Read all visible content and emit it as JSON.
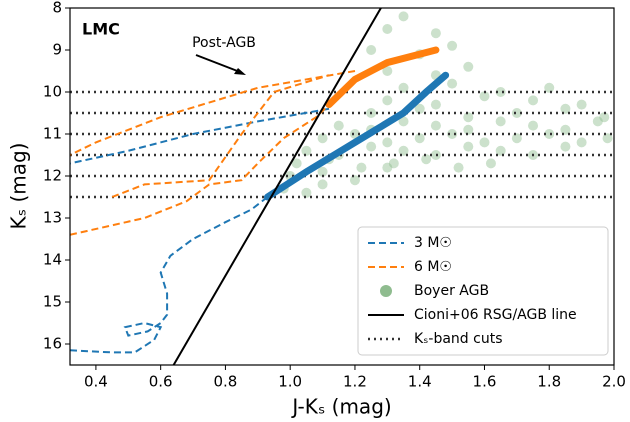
{
  "chart_data": {
    "type": "line",
    "label": "LMC",
    "annotation": "Post-AGB",
    "xlabel": "J-Kₛ (mag)",
    "ylabel": "Kₛ (mag)",
    "xlim": [
      0.32,
      2.0
    ],
    "ylim": [
      8,
      16.5
    ],
    "y_inverted": true,
    "xticks": [
      0.4,
      0.6,
      0.8,
      {
        "value": 1,
        "label": "1.0"
      },
      1.2,
      1.4,
      1.6,
      1.8,
      {
        "value": 2,
        "label": "2.0"
      }
    ],
    "yticks": [
      8,
      9,
      10,
      11,
      12,
      13,
      14,
      15,
      16
    ],
    "legend": "lower right",
    "series": [
      {
        "name": "3 M☉",
        "kind": "track",
        "color": "#1f77b4",
        "x": [
          0.32,
          0.45,
          0.52,
          0.58,
          0.6,
          0.55,
          0.49,
          0.5,
          0.56,
          0.6,
          0.62,
          0.62,
          0.6,
          0.63,
          0.7,
          0.8,
          0.88,
          0.93,
          null,
          1.12,
          0.9,
          0.7,
          0.5,
          0.32
        ],
        "y": [
          16.15,
          16.2,
          16.2,
          15.9,
          15.6,
          15.5,
          15.6,
          15.8,
          15.7,
          15.5,
          15.3,
          14.8,
          14.3,
          13.9,
          13.5,
          13.1,
          12.8,
          12.5,
          null,
          10.4,
          10.7,
          11.0,
          11.4,
          11.7
        ],
        "tp_x": [
          0.93,
          1.05,
          1.2,
          1.35,
          1.42,
          1.48
        ],
        "tp_y": [
          12.5,
          11.9,
          11.2,
          10.5,
          10.0,
          9.6
        ]
      },
      {
        "name": "6 M☉",
        "kind": "track",
        "color": "#ff7f0e",
        "x": [
          0.32,
          0.55,
          0.68,
          0.75,
          0.85,
          0.9,
          0.98,
          1.08,
          1.12,
          null,
          1.2,
          0.9,
          0.6,
          0.4,
          0.32,
          null,
          0.45,
          0.55,
          0.75,
          0.85,
          0.95,
          1.12
        ],
        "y": [
          13.4,
          13.0,
          12.6,
          12.2,
          12.1,
          11.7,
          11.1,
          10.6,
          10.3,
          null,
          9.5,
          9.9,
          10.6,
          11.2,
          11.5,
          null,
          12.5,
          12.2,
          12.1,
          11.0,
          10.0,
          9.6
        ],
        "tp_x": [
          1.12,
          1.2,
          1.3,
          1.45
        ],
        "tp_y": [
          10.3,
          9.7,
          9.3,
          9.0
        ]
      },
      {
        "name": "Boyer AGB",
        "kind": "scatter",
        "color": "#8fbc8f",
        "x": [
          0.98,
          1.05,
          1.1,
          1.0,
          1.1,
          1.2,
          1.3,
          1.02,
          1.12,
          1.22,
          1.32,
          1.42,
          1.52,
          1.62,
          1.05,
          1.15,
          1.25,
          1.35,
          1.45,
          1.55,
          1.65,
          1.75,
          1.85,
          1.1,
          1.2,
          1.3,
          1.4,
          1.5,
          1.6,
          1.7,
          1.8,
          1.9,
          1.98,
          1.15,
          1.25,
          1.35,
          1.45,
          1.55,
          1.65,
          1.75,
          1.85,
          1.95,
          1.25,
          1.4,
          1.55,
          1.7,
          1.85,
          1.97,
          1.3,
          1.45,
          1.6,
          1.75,
          1.9,
          1.35,
          1.5,
          1.65,
          1.8,
          1.3,
          1.45,
          1.55,
          1.25,
          1.4,
          1.5,
          1.3,
          1.45,
          1.35
        ],
        "y": [
          12.3,
          12.4,
          12.2,
          12.0,
          11.9,
          12.1,
          11.8,
          11.7,
          11.6,
          11.8,
          11.7,
          11.6,
          11.8,
          11.7,
          11.4,
          11.5,
          11.3,
          11.4,
          11.5,
          11.3,
          11.4,
          11.5,
          11.3,
          11.1,
          11.0,
          11.2,
          11.1,
          11.0,
          11.2,
          11.1,
          11.0,
          11.2,
          11.1,
          10.8,
          10.9,
          10.7,
          10.8,
          10.9,
          10.7,
          10.8,
          10.9,
          10.7,
          10.5,
          10.4,
          10.6,
          10.5,
          10.4,
          10.6,
          10.2,
          10.3,
          10.1,
          10.2,
          10.3,
          9.9,
          9.8,
          10.0,
          9.9,
          9.5,
          9.6,
          9.4,
          9.0,
          9.1,
          8.9,
          8.5,
          8.6,
          8.2
        ]
      },
      {
        "name": "Cioni+06 RSG/AGB line",
        "kind": "line",
        "color": "#000000",
        "x": [
          0.64,
          1.28
        ],
        "y": [
          16.5,
          8
        ]
      },
      {
        "name": "Kₛ-band cuts",
        "kind": "cuts",
        "color": "#333333",
        "values": [
          10,
          10.5,
          11,
          11.5,
          12,
          12.5
        ]
      }
    ]
  }
}
